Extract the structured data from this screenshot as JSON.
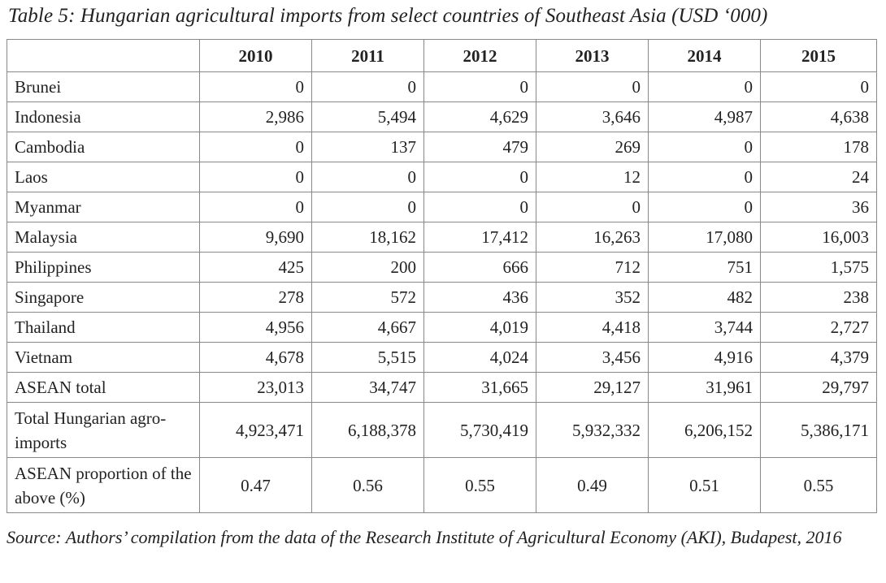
{
  "title": "Table 5: Hungarian agricultural imports from select countries of Southeast Asia (USD ‘000)",
  "table": {
    "header": [
      "2010",
      "2011",
      "2012",
      "2013",
      "2014",
      "2015"
    ],
    "rows": [
      [
        "Brunei",
        "0",
        "0",
        "0",
        "0",
        "0",
        "0"
      ],
      [
        "Indonesia",
        "2,986",
        "5,494",
        "4,629",
        "3,646",
        "4,987",
        "4,638"
      ],
      [
        "Cambodia",
        "0",
        "137",
        "479",
        "269",
        "0",
        "178"
      ],
      [
        "Laos",
        "0",
        "0",
        "0",
        "12",
        "0",
        "24"
      ],
      [
        "Myanmar",
        "0",
        "0",
        "0",
        "0",
        "0",
        "36"
      ],
      [
        "Malaysia",
        "9,690",
        "18,162",
        "17,412",
        "16,263",
        "17,080",
        "16,003"
      ],
      [
        "Philippines",
        "425",
        "200",
        "666",
        "712",
        "751",
        "1,575"
      ],
      [
        "Singapore",
        "278",
        "572",
        "436",
        "352",
        "482",
        "238"
      ],
      [
        "Thailand",
        "4,956",
        "4,667",
        "4,019",
        "4,418",
        "3,744",
        "2,727"
      ],
      [
        "Vietnam",
        "4,678",
        "5,515",
        "4,024",
        "3,456",
        "4,916",
        "4,379"
      ],
      [
        "ASEAN total",
        "23,013",
        "34,747",
        "31,665",
        "29,127",
        "31,961",
        "29,797"
      ],
      [
        "Total Hungarian agro-imports",
        "4,923,471",
        "6,188,378",
        "5,730,419",
        "5,932,332",
        "6,206,152",
        "5,386,171"
      ],
      [
        "ASEAN proportion of the above (%)",
        "0.47",
        "0.56",
        "0.55",
        "0.49",
        "0.51",
        "0.55"
      ]
    ]
  },
  "source": "Source: Authors’ compilation from the data of the Research Institute of Agricultural Economy (AKI), Budapest, 2016"
}
